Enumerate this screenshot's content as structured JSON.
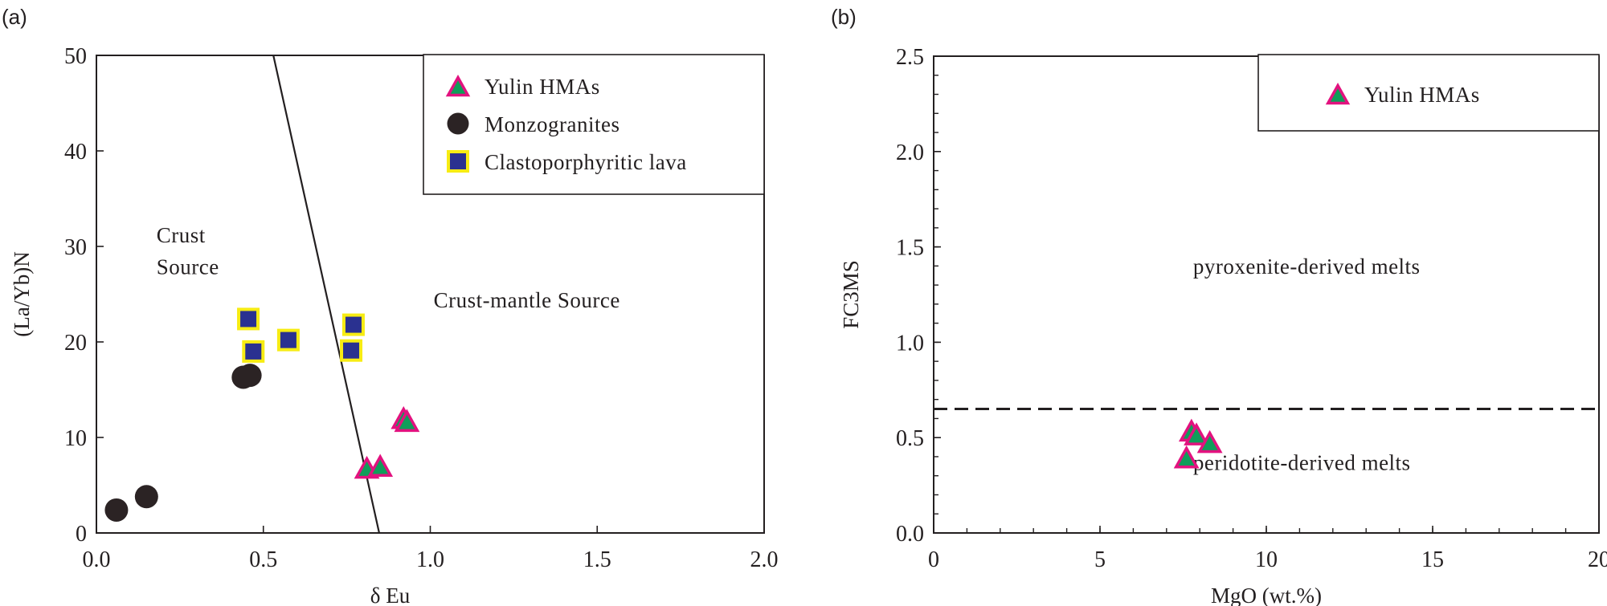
{
  "panels": {
    "a": {
      "label": "(a)"
    },
    "b": {
      "label": "(b)"
    }
  },
  "colors": {
    "triangle_fill": "#109d5a",
    "triangle_stroke": "#e2127f",
    "circle_fill": "#2b2324",
    "square_fill": "#2a3190",
    "square_stroke": "#f7ec13",
    "axis": "#231f20"
  },
  "chart_data": [
    {
      "id": "a",
      "type": "scatter",
      "title": "",
      "xlabel": "δ Eu",
      "ylabel": "(La/Yb)N",
      "xlim": [
        0.0,
        2.0
      ],
      "ylim": [
        0,
        50
      ],
      "xticks": [
        "0.0",
        "0.5",
        "1.0",
        "1.5",
        "2.0"
      ],
      "yticks": [
        "0",
        "10",
        "20",
        "30",
        "40",
        "50"
      ],
      "grid": false,
      "legend_position": "upper right",
      "boundary_line": {
        "x1": 0.53,
        "y1": 50,
        "x2": 0.847,
        "y2": 0,
        "style": "solid"
      },
      "annotations": [
        {
          "text": "Crust",
          "x": 0.18,
          "y": 30.4
        },
        {
          "text": "Source",
          "x": 0.18,
          "y": 27.1
        },
        {
          "text": "Crust-mantle  Source",
          "x": 1.01,
          "y": 23.6
        }
      ],
      "series": [
        {
          "name": "Yulin HMAs",
          "marker": "triangle",
          "points": [
            [
              0.92,
              11.7
            ],
            [
              0.93,
              11.4
            ],
            [
              0.81,
              6.5
            ],
            [
              0.85,
              6.7
            ]
          ]
        },
        {
          "name": "Monzogranites",
          "marker": "circle",
          "points": [
            [
              0.06,
              2.4
            ],
            [
              0.15,
              3.8
            ],
            [
              0.44,
              16.3
            ],
            [
              0.46,
              16.5
            ]
          ]
        },
        {
          "name": "Clastoporphyritic lava",
          "marker": "square",
          "points": [
            [
              0.455,
              22.4
            ],
            [
              0.47,
              19.0
            ],
            [
              0.575,
              20.2
            ],
            [
              0.77,
              21.8
            ],
            [
              0.763,
              19.1
            ]
          ]
        }
      ]
    },
    {
      "id": "b",
      "type": "scatter",
      "title": "",
      "xlabel": "MgO (wt.%)",
      "ylabel": "FC3MS",
      "xlim": [
        0,
        20
      ],
      "ylim": [
        0.0,
        2.5
      ],
      "xticks": [
        "0",
        "5",
        "10",
        "15",
        "20"
      ],
      "yticks": [
        "0.0",
        "0.5",
        "1.0",
        "1.5",
        "2.0",
        "2.5"
      ],
      "grid": false,
      "legend_position": "upper right",
      "boundary_line": {
        "y": 0.65,
        "style": "dashed"
      },
      "annotations": [
        {
          "text": "pyroxenite-derived melts",
          "x": 7.8,
          "y": 1.36
        },
        {
          "text": "peridotite-derived melts",
          "x": 7.8,
          "y": 0.33
        }
      ],
      "series": [
        {
          "name": "Yulin HMAs",
          "marker": "triangle",
          "points": [
            [
              7.75,
              0.52
            ],
            [
              7.9,
              0.5
            ],
            [
              8.3,
              0.46
            ],
            [
              7.6,
              0.38
            ]
          ]
        }
      ]
    }
  ]
}
